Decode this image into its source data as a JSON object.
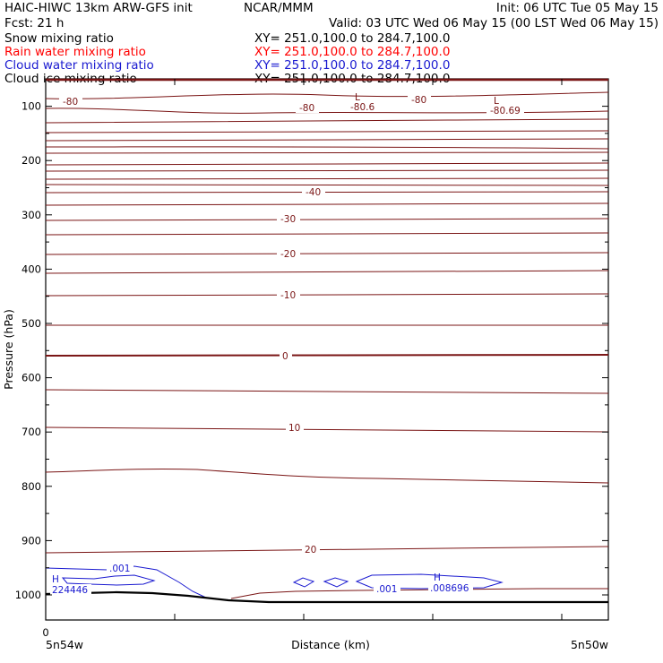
{
  "header": {
    "title_left": "HAIC-HIWC 13km ARW-GFS init",
    "title_mid": "NCAR/MMM",
    "init": "Init: 06 UTC Tue 05 May 15",
    "fcst": "Fcst:    21 h",
    "valid": "Valid: 03 UTC Wed 06 May 15 (00 LST Wed 06 May 15)",
    "fields": [
      {
        "name": "Snow mixing ratio",
        "xy": "XY= 251.0,100.0 to 284.7,100.0",
        "color": "#000000"
      },
      {
        "name": "Rain water mixing ratio",
        "xy": "XY= 251.0,100.0 to 284.7,100.0",
        "color": "#ff0000"
      },
      {
        "name": "Cloud water mixing ratio",
        "xy": "XY= 251.0,100.0 to 284.7,100.0",
        "color": "#1a1ad0"
      },
      {
        "name": "Cloud ice mixing ratio",
        "xy": "XY= 251.0,100.0 to 284.7,100.0",
        "color": "#000000"
      }
    ]
  },
  "chart_data": {
    "type": "line",
    "ylabel": "Pressure (hPa)",
    "xlabel": "Distance (km)",
    "x_origin_label": "0",
    "x_left_label": "5n54w",
    "x_right_label": "5n50w",
    "y_ticks": [
      100,
      200,
      300,
      400,
      500,
      600,
      700,
      800,
      900,
      1000
    ],
    "temperature_contour_labels": [
      "-80",
      "-80",
      "-80.6",
      "-80",
      "-80.69",
      "-40",
      "-30",
      "-20",
      "-10",
      "0",
      "10",
      "20"
    ],
    "low_markers": [
      "L",
      "L"
    ],
    "high_markers": [
      "H",
      "H"
    ],
    "cloud_water_labels": [
      ".001",
      "224446",
      ".001",
      ".008696"
    ],
    "colors": {
      "contour": "#7a1515",
      "cloud_water": "#1a1ad0",
      "terrain": "#000000"
    }
  }
}
